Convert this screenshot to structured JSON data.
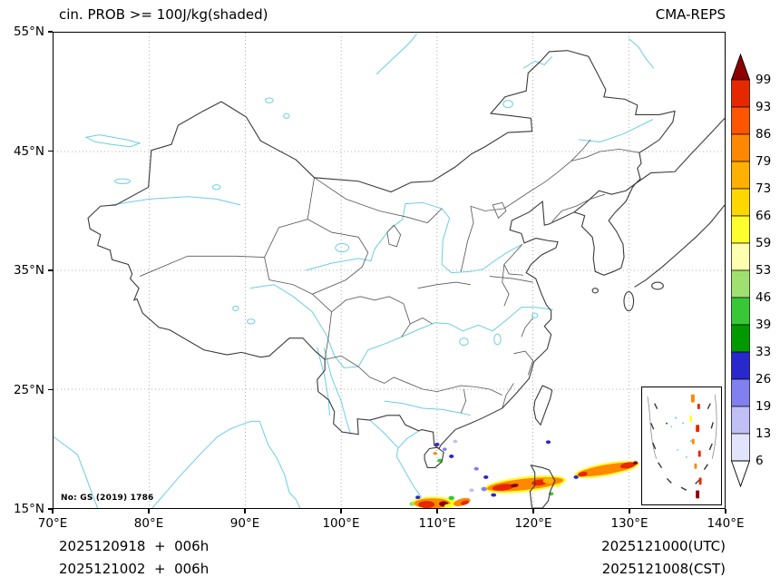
{
  "header": {
    "title": "cin. PROB >= 100J/kg(shaded)",
    "model": "CMA-REPS"
  },
  "map_note": "No: GS (2019) 1786",
  "footer": {
    "init_utc": "2025120918  +  006h",
    "init_cst": "2025121002  +  006h",
    "valid_utc": "2025121000(UTC)",
    "valid_cst": "2025121008(CST)"
  },
  "chart_data": {
    "type": "heatmap",
    "title": "cin. PROB >= 100J/kg(shaded)",
    "model": "CMA-REPS",
    "units": "%",
    "x_axis": {
      "min": 70,
      "max": 140,
      "ticks_deg": [
        70,
        80,
        90,
        100,
        110,
        120,
        130,
        140
      ],
      "tick_labels": [
        "70°E",
        "80°E",
        "90°E",
        "100°E",
        "110°E",
        "120°E",
        "130°E",
        "140°E"
      ]
    },
    "y_axis": {
      "min": 15,
      "max": 55,
      "ticks_deg": [
        15,
        25,
        35,
        45,
        55
      ],
      "tick_labels": [
        "15°N",
        "25°N",
        "35°N",
        "45°N",
        "55°N"
      ]
    },
    "grid": {
      "style": "dotted",
      "interval_deg": 10,
      "color": "#999999"
    },
    "colorbar": {
      "orientation": "vertical-right",
      "levels": [
        6,
        13,
        19,
        26,
        33,
        39,
        46,
        53,
        59,
        66,
        73,
        79,
        86,
        93,
        99
      ],
      "colors_bottom_to_top": [
        "#ffffff",
        "#e3e3fb",
        "#c0c0f7",
        "#8080f0",
        "#2828cd",
        "#009a00",
        "#37c837",
        "#9fe070",
        "#ffffb0",
        "#ffff2e",
        "#ffd700",
        "#ffb000",
        "#ff8800",
        "#ff5500",
        "#e62800",
        "#8c0000"
      ],
      "under_color": "#ffffff",
      "over_color": "#8c0000"
    },
    "shaded_regions_note": "entries are [lon_deg_E, lat_deg_N, width_deg, height_deg, rotation_deg, probability_pct]",
    "shaded_regions": [
      [
        119.2,
        17.0,
        8.6,
        1.3,
        -5,
        60
      ],
      [
        119.2,
        17.0,
        8.0,
        0.95,
        -5,
        82
      ],
      [
        116.9,
        16.75,
        2.3,
        0.55,
        -5,
        95
      ],
      [
        120.7,
        17.15,
        1.7,
        0.5,
        -5,
        95
      ],
      [
        118.1,
        16.9,
        0.8,
        0.3,
        -5,
        100
      ],
      [
        121.6,
        17.3,
        1.1,
        0.5,
        0,
        75
      ],
      [
        115.9,
        16.1,
        0.55,
        0.3,
        0,
        28
      ],
      [
        114.9,
        16.6,
        0.6,
        0.35,
        0,
        22
      ],
      [
        121.9,
        16.2,
        0.5,
        0.3,
        0,
        42
      ],
      [
        122.6,
        16.9,
        0.6,
        0.3,
        0,
        60
      ],
      [
        127.7,
        18.25,
        6.8,
        1.1,
        -8,
        60
      ],
      [
        127.7,
        18.25,
        6.2,
        0.8,
        -8,
        82
      ],
      [
        129.9,
        18.6,
        1.6,
        0.5,
        -8,
        95
      ],
      [
        125.2,
        17.85,
        1.0,
        0.4,
        -8,
        95
      ],
      [
        124.5,
        17.6,
        0.5,
        0.3,
        0,
        28
      ],
      [
        130.7,
        18.8,
        0.5,
        0.3,
        0,
        100
      ],
      [
        109.7,
        15.45,
        4.8,
        1.0,
        0,
        60
      ],
      [
        109.5,
        15.4,
        3.8,
        0.85,
        0,
        82
      ],
      [
        108.9,
        15.3,
        1.7,
        0.6,
        0,
        95
      ],
      [
        110.7,
        15.35,
        1.0,
        0.45,
        0,
        100
      ],
      [
        112.6,
        15.5,
        1.8,
        0.6,
        -12,
        82
      ],
      [
        112.9,
        15.45,
        0.9,
        0.35,
        -12,
        95
      ],
      [
        111.5,
        15.85,
        0.6,
        0.35,
        0,
        42
      ],
      [
        108.0,
        15.9,
        0.5,
        0.3,
        0,
        28
      ],
      [
        111.2,
        15.15,
        0.9,
        0.4,
        0,
        60
      ],
      [
        107.4,
        15.35,
        0.6,
        0.35,
        0,
        48
      ],
      [
        110.0,
        20.35,
        0.5,
        0.3,
        0,
        28
      ],
      [
        110.8,
        19.95,
        0.45,
        0.28,
        0,
        22
      ],
      [
        111.5,
        19.35,
        0.5,
        0.3,
        0,
        28
      ],
      [
        110.3,
        19.0,
        0.55,
        0.3,
        0,
        42
      ],
      [
        109.8,
        19.6,
        0.4,
        0.25,
        0,
        82
      ],
      [
        111.9,
        20.6,
        0.45,
        0.28,
        0,
        15
      ],
      [
        114.1,
        18.3,
        0.5,
        0.3,
        0,
        22
      ],
      [
        115.1,
        17.6,
        0.5,
        0.3,
        0,
        28
      ],
      [
        121.6,
        20.55,
        0.5,
        0.3,
        0,
        28
      ],
      [
        113.6,
        16.5,
        0.5,
        0.3,
        0,
        15
      ]
    ],
    "inset_marks_note": "South China Sea inset shading: [x_frac, y_frac, w_px, h_px, probability_pct]",
    "inset_marks": [
      [
        0.62,
        0.06,
        4,
        9,
        82
      ],
      [
        0.7,
        0.14,
        3,
        6,
        95
      ],
      [
        0.6,
        0.24,
        3,
        7,
        60
      ],
      [
        0.68,
        0.32,
        4,
        8,
        95
      ],
      [
        0.63,
        0.44,
        3,
        6,
        82
      ],
      [
        0.71,
        0.54,
        3,
        7,
        95
      ],
      [
        0.66,
        0.65,
        3,
        6,
        82
      ],
      [
        0.72,
        0.77,
        3,
        8,
        95
      ],
      [
        0.68,
        0.88,
        4,
        9,
        100
      ],
      [
        0.3,
        0.3,
        2,
        2,
        28
      ]
    ]
  }
}
